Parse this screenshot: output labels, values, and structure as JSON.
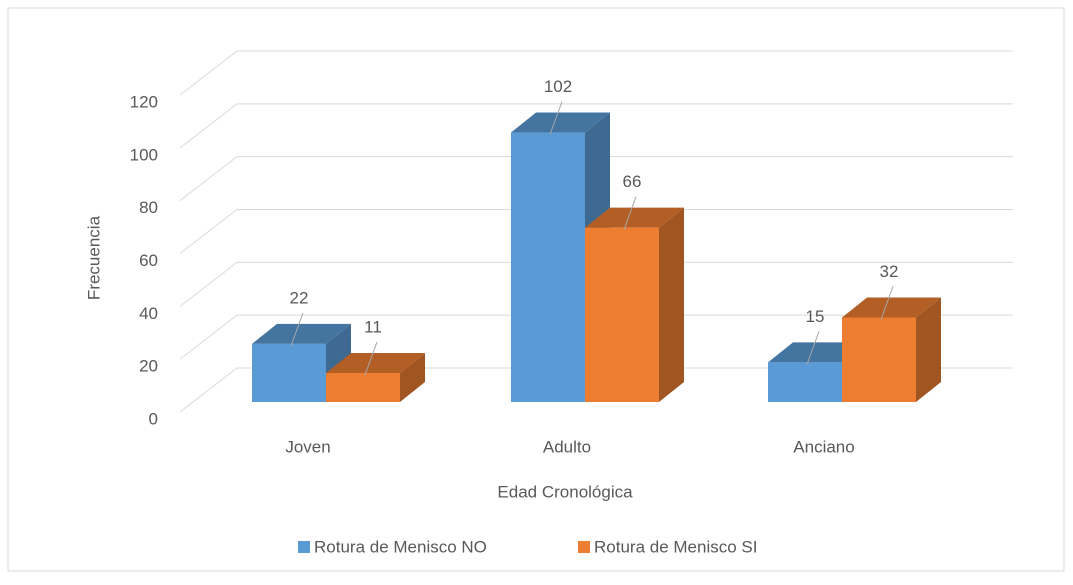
{
  "chart_data": {
    "type": "bar3d",
    "x_label": "Edad Cronológica",
    "y_label": "Frecuencia",
    "categories": [
      "Joven",
      "Adulto",
      "Anciano"
    ],
    "series": [
      {
        "name": "Rotura de Menisco NO",
        "color": "#5b9bd5",
        "values": [
          22,
          102,
          15
        ]
      },
      {
        "name": "Rotura de Menisco SI",
        "color": "#ed7d31",
        "values": [
          11,
          66,
          32
        ]
      }
    ],
    "ylim": [
      0,
      120
    ],
    "yticks": [
      0,
      20,
      40,
      60,
      80,
      100,
      120
    ],
    "grid": true
  }
}
